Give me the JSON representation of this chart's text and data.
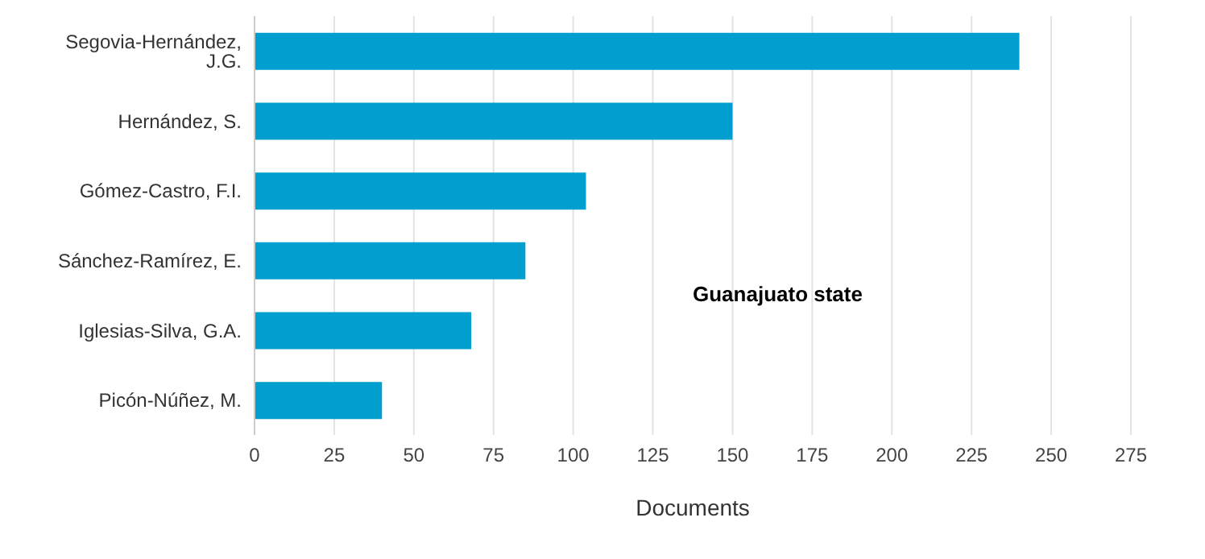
{
  "chart_data": {
    "type": "bar",
    "orientation": "horizontal",
    "xlabel": "Documents",
    "annotations": [
      "Guanajuato state"
    ],
    "categories": [
      "Segovia-Hernández, J.G.",
      "Hernández, S.",
      "Gómez-Castro, F.I.",
      "Sánchez-Ramírez, E.",
      "Iglesias-Silva, G.A.",
      "Picón-Núñez, M."
    ],
    "values": [
      240,
      150,
      104,
      85,
      68,
      40
    ],
    "color": "#009fcf",
    "xlim": [
      0,
      275
    ],
    "xticks": [
      0,
      25,
      50,
      75,
      100,
      125,
      150,
      175,
      200,
      225,
      250,
      275
    ],
    "grid": "x",
    "legend": false
  }
}
